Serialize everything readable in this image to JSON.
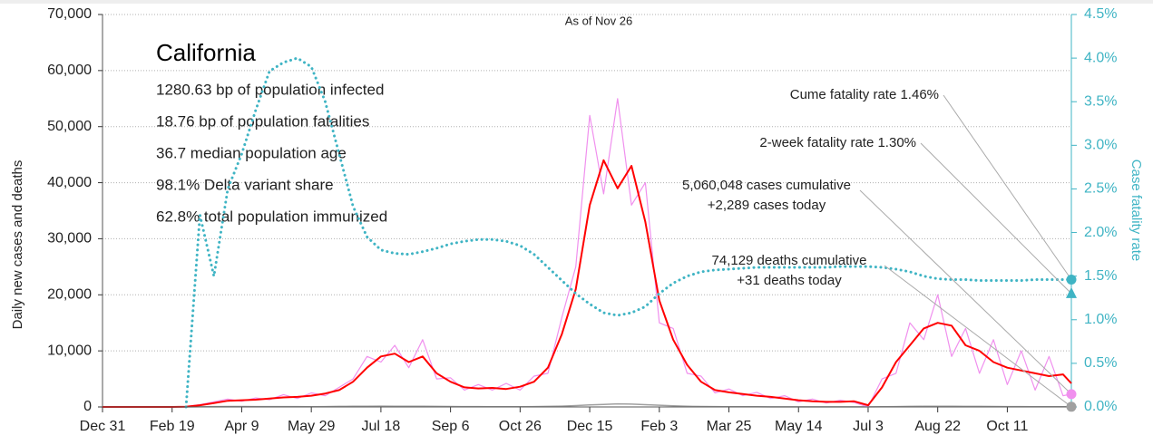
{
  "chart_data": {
    "type": "line",
    "title": "California",
    "subtitle": "As of Nov 26",
    "stats": [
      "1280.63 bp of population infected",
      "18.76 bp of population fatalities",
      "36.7 median population age",
      "98.1% Delta variant share",
      "62.8% total population immunized"
    ],
    "y_label": "Daily new cases and deaths",
    "y2_label": "Case fatality rate",
    "xlim": [
      0,
      696
    ],
    "xticks": [
      {
        "value": 0,
        "label": "Dec 31"
      },
      {
        "value": 50,
        "label": "Feb 19"
      },
      {
        "value": 100,
        "label": "Apr 9"
      },
      {
        "value": 150,
        "label": "May 29"
      },
      {
        "value": 200,
        "label": "Jul 18"
      },
      {
        "value": 250,
        "label": "Sep 6"
      },
      {
        "value": 300,
        "label": "Oct 26"
      },
      {
        "value": 350,
        "label": "Dec 15"
      },
      {
        "value": 400,
        "label": "Feb 3"
      },
      {
        "value": 450,
        "label": "Mar 25"
      },
      {
        "value": 500,
        "label": "May 14"
      },
      {
        "value": 550,
        "label": "Jul 3"
      },
      {
        "value": 600,
        "label": "Aug 22"
      },
      {
        "value": 650,
        "label": "Oct 11"
      }
    ],
    "ylim": [
      0,
      70000
    ],
    "yticks": [
      {
        "value": 0,
        "label": "0"
      },
      {
        "value": 10000,
        "label": "10,000"
      },
      {
        "value": 20000,
        "label": "20,000"
      },
      {
        "value": 30000,
        "label": "30,000"
      },
      {
        "value": 40000,
        "label": "40,000"
      },
      {
        "value": 50000,
        "label": "50,000"
      },
      {
        "value": 60000,
        "label": "60,000"
      },
      {
        "value": 70000,
        "label": "70,000"
      }
    ],
    "y2lim": [
      0,
      4.5
    ],
    "y2ticks": [
      {
        "value": 0,
        "label": "0.0%"
      },
      {
        "value": 0.5,
        "label": "0.5%"
      },
      {
        "value": 1,
        "label": "1.0%"
      },
      {
        "value": 1.5,
        "label": "1.5%"
      },
      {
        "value": 2,
        "label": "2.0%"
      },
      {
        "value": 2.5,
        "label": "2.5%"
      },
      {
        "value": 3,
        "label": "3.0%"
      },
      {
        "value": 3.5,
        "label": "3.5%"
      },
      {
        "value": 4,
        "label": "4.0%"
      },
      {
        "value": 4.5,
        "label": "4.5%"
      }
    ],
    "y2_color": "#3fb4c4",
    "grid": true,
    "x": [
      0,
      10,
      20,
      30,
      40,
      50,
      60,
      70,
      80,
      90,
      100,
      110,
      120,
      130,
      140,
      150,
      160,
      170,
      180,
      190,
      200,
      210,
      220,
      230,
      240,
      250,
      260,
      270,
      280,
      290,
      300,
      310,
      320,
      330,
      340,
      350,
      360,
      370,
      380,
      390,
      400,
      410,
      420,
      430,
      440,
      450,
      460,
      470,
      480,
      490,
      500,
      510,
      520,
      530,
      540,
      550,
      560,
      570,
      580,
      590,
      600,
      610,
      620,
      630,
      640,
      650,
      660,
      670,
      680,
      690,
      696
    ],
    "series": [
      {
        "color": "#a0a0a0",
        "width": 1.5,
        "style": "solid",
        "values": [
          0,
          0,
          0,
          0,
          0,
          0,
          0,
          30,
          60,
          80,
          80,
          70,
          70,
          60,
          60,
          50,
          60,
          90,
          110,
          130,
          140,
          130,
          120,
          110,
          90,
          80,
          70,
          60,
          50,
          50,
          50,
          70,
          100,
          150,
          250,
          350,
          450,
          550,
          500,
          400,
          300,
          200,
          120,
          80,
          60,
          40,
          30,
          25,
          20,
          15,
          15,
          15,
          15,
          10,
          15,
          20,
          40,
          60,
          90,
          110,
          120,
          110,
          100,
          90,
          80,
          70,
          60,
          50,
          50,
          40,
          31
        ]
      },
      {
        "color": "#f090ee",
        "width": 1.2,
        "style": "solid",
        "values": [
          0,
          0,
          0,
          0,
          0,
          0,
          80,
          400,
          900,
          1400,
          1000,
          1600,
          1300,
          2200,
          1500,
          2500,
          2000,
          3500,
          5000,
          9000,
          8000,
          11000,
          7000,
          12000,
          5000,
          5200,
          3000,
          4000,
          3000,
          4200,
          3000,
          5500,
          6000,
          16000,
          25000,
          52000,
          38000,
          55000,
          36000,
          40000,
          15000,
          14000,
          6000,
          5500,
          2500,
          3200,
          2000,
          2600,
          1500,
          2000,
          900,
          1400,
          700,
          1200,
          800,
          0,
          5000,
          6000,
          15000,
          12000,
          20000,
          9000,
          14000,
          6000,
          12000,
          4000,
          10000,
          3000,
          9000,
          2000,
          2289
        ]
      },
      {
        "color": "#ff0000",
        "width": 2,
        "style": "solid",
        "values": [
          0,
          0,
          0,
          0,
          0,
          0,
          50,
          300,
          700,
          1100,
          1200,
          1300,
          1500,
          1700,
          1800,
          2000,
          2400,
          3000,
          4500,
          7000,
          9000,
          9500,
          8000,
          9000,
          6000,
          4500,
          3500,
          3300,
          3400,
          3200,
          3600,
          4500,
          7000,
          13000,
          21000,
          36000,
          44000,
          39000,
          43000,
          33000,
          19000,
          12000,
          7500,
          4500,
          3000,
          2600,
          2300,
          2000,
          1800,
          1500,
          1200,
          1000,
          900,
          900,
          1000,
          300,
          3500,
          8000,
          11000,
          14000,
          15000,
          14500,
          11000,
          10000,
          8000,
          7000,
          6500,
          6000,
          5500,
          5800,
          4200
        ]
      },
      {
        "color": "#3fb4c4",
        "width": 3,
        "style": "dotted",
        "axis": "y2",
        "values": [
          null,
          null,
          null,
          null,
          null,
          null,
          0,
          2.2,
          1.5,
          2.5,
          2.9,
          3.4,
          3.85,
          3.95,
          4.0,
          3.9,
          3.5,
          2.9,
          2.3,
          1.95,
          1.8,
          1.76,
          1.75,
          1.78,
          1.82,
          1.87,
          1.9,
          1.92,
          1.92,
          1.9,
          1.85,
          1.75,
          1.6,
          1.45,
          1.3,
          1.18,
          1.08,
          1.05,
          1.08,
          1.15,
          1.3,
          1.42,
          1.5,
          1.55,
          1.57,
          1.58,
          1.59,
          1.6,
          1.6,
          1.6,
          1.6,
          1.6,
          1.6,
          1.61,
          1.61,
          1.61,
          1.6,
          1.58,
          1.55,
          1.5,
          1.47,
          1.46,
          1.46,
          1.45,
          1.45,
          1.45,
          1.45,
          1.46,
          1.46,
          1.46,
          1.46
        ]
      }
    ],
    "callouts": [
      {
        "lines": [
          "Cume fatality rate 1.46%"
        ],
        "value": 1.46,
        "axis": "y2",
        "shape": "circle",
        "color": "#3fb4c4"
      },
      {
        "lines": [
          "2-week fatality rate 1.30%"
        ],
        "value": 1.3,
        "axis": "y2",
        "shape": "triangle",
        "color": "#3fb4c4"
      },
      {
        "lines": [
          "5,060,048 cases cumulative",
          "+2,289 cases today"
        ],
        "value": 2289,
        "shape": "circle",
        "color": "#f090ee"
      },
      {
        "lines": [
          "74,129 deaths cumulative",
          "+31 deaths today"
        ],
        "value": 31,
        "shape": "circle",
        "color": "#a0a0a0"
      }
    ]
  }
}
